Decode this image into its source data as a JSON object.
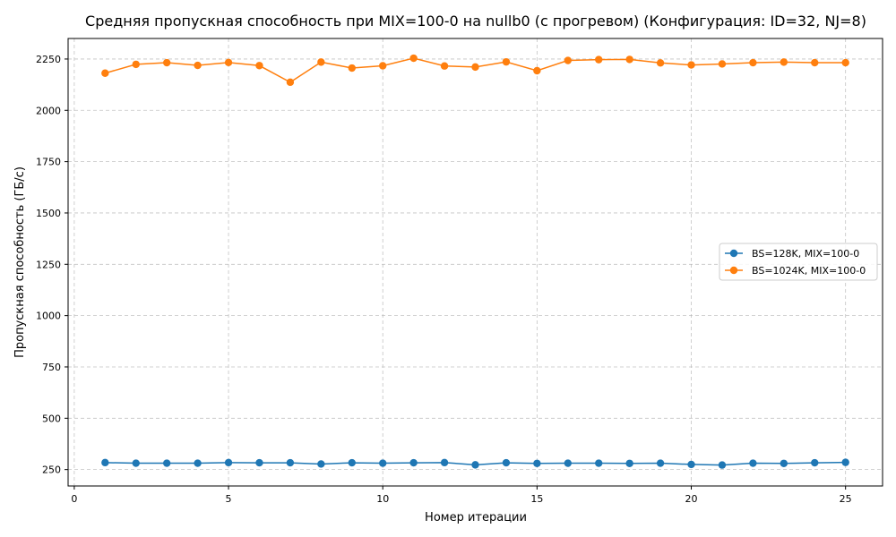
{
  "chart_data": {
    "type": "line",
    "title": "Средняя пропускная способность при MIX=100-0 на nullb0 (с прогревом) (Конфигурация: ID=32, NJ=8)",
    "xlabel": "Номер итерации",
    "ylabel": "Пропускная способность (ГБ/с)",
    "xlim": [
      -0.2,
      26.2
    ],
    "ylim": [
      170,
      2350
    ],
    "xticks": [
      0,
      5,
      10,
      15,
      20,
      25
    ],
    "yticks": [
      250,
      500,
      750,
      1000,
      1250,
      1500,
      1750,
      2000,
      2250
    ],
    "grid": true,
    "legend_position": "center-right",
    "x": [
      1,
      2,
      3,
      4,
      5,
      6,
      7,
      8,
      9,
      10,
      11,
      12,
      13,
      14,
      15,
      16,
      17,
      18,
      19,
      20,
      21,
      22,
      23,
      24,
      25
    ],
    "series": [
      {
        "name": "BS=128K, MIX=100-0",
        "color": "#1f77b4",
        "values": [
          284,
          281,
          281,
          281,
          284,
          283,
          283,
          277,
          283,
          281,
          283,
          284,
          273,
          283,
          280,
          281,
          281,
          280,
          281,
          275,
          272,
          281,
          280,
          283,
          285
        ]
      },
      {
        "name": "BS=1024K, MIX=100-0",
        "color": "#ff7f0e",
        "values": [
          2181,
          2224,
          2232,
          2219,
          2233,
          2218,
          2137,
          2235,
          2206,
          2217,
          2254,
          2216,
          2211,
          2236,
          2193,
          2243,
          2247,
          2248,
          2231,
          2221,
          2226,
          2232,
          2235,
          2232,
          2232
        ]
      }
    ]
  }
}
